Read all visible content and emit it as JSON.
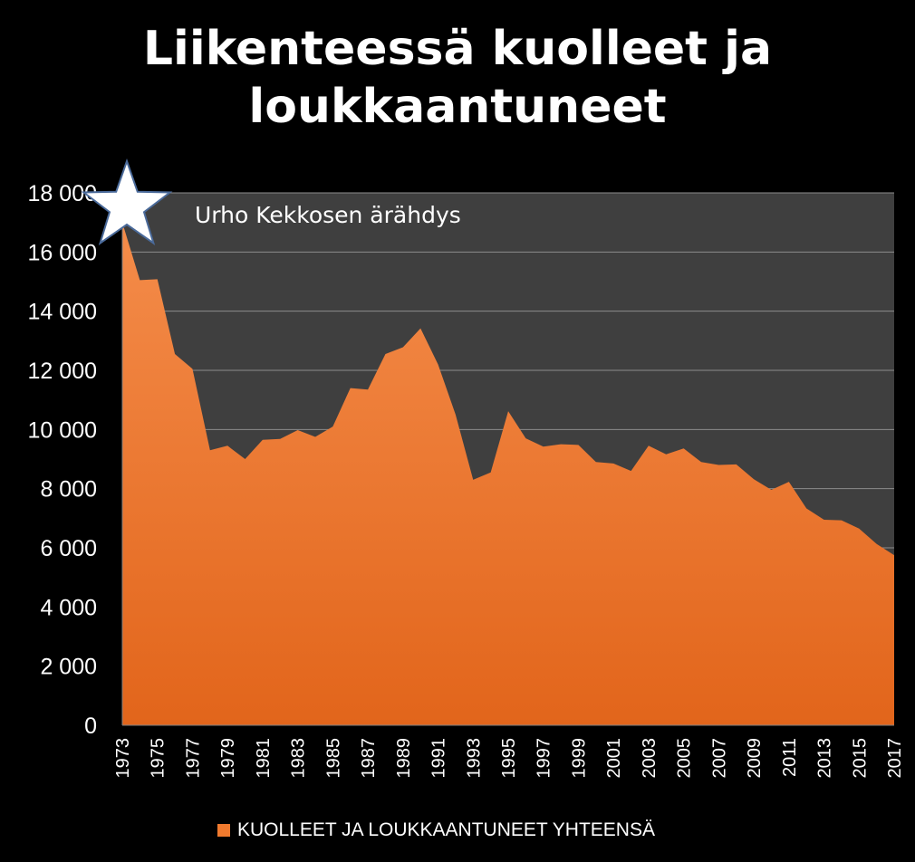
{
  "chart_data": {
    "type": "area",
    "title": "Liikenteessä kuolleet ja loukkaantuneet",
    "title_lines": [
      "Liikenteessä kuolleet ja",
      "loukkaantuneet"
    ],
    "xlabel": "",
    "ylabel": "",
    "ylim": [
      0,
      18000
    ],
    "y_ticks": [
      0,
      2000,
      4000,
      6000,
      8000,
      10000,
      12000,
      14000,
      16000,
      18000
    ],
    "y_tick_labels": [
      "0",
      "2 000",
      "4 000",
      "6 000",
      "8 000",
      "10 000",
      "12 000",
      "14 000",
      "16 000",
      "18 000"
    ],
    "x_tick_labels": [
      "1973",
      "1975",
      "1977",
      "1979",
      "1981",
      "1983",
      "1985",
      "1987",
      "1989",
      "1991",
      "1993",
      "1995",
      "1997",
      "1999",
      "2001",
      "2003",
      "2005",
      "2007",
      "2009",
      "2011",
      "2013",
      "2015",
      "2017"
    ],
    "grid": true,
    "legend_position": "bottom",
    "x": [
      1973,
      1974,
      1975,
      1976,
      1977,
      1978,
      1979,
      1980,
      1981,
      1982,
      1983,
      1984,
      1985,
      1986,
      1987,
      1988,
      1989,
      1990,
      1991,
      1992,
      1993,
      1994,
      1995,
      1996,
      1997,
      1998,
      1999,
      2000,
      2001,
      2002,
      2003,
      2004,
      2005,
      2006,
      2007,
      2008,
      2009,
      2010,
      2011,
      2012,
      2013,
      2014,
      2015,
      2016,
      2017
    ],
    "series": [
      {
        "name": "KUOLLEET JA LOUKKAANTUNEET YHTEENSÄ",
        "color": "#F07A2E",
        "values": [
          17000,
          15050,
          15080,
          12550,
          12050,
          9300,
          9450,
          9000,
          9650,
          9680,
          9980,
          9750,
          10100,
          11400,
          11350,
          12550,
          12780,
          13420,
          12200,
          10500,
          8300,
          8550,
          10620,
          9700,
          9420,
          9500,
          9480,
          8900,
          8850,
          8600,
          9450,
          9160,
          9360,
          8900,
          8800,
          8820,
          8320,
          7960,
          8230,
          7330,
          6950,
          6930,
          6650,
          6130,
          5750
        ]
      }
    ],
    "annotations": [
      {
        "text": "Urho Kekkosen ärähdys",
        "x": 1973,
        "y": 17000,
        "marker": "star-icon"
      }
    ],
    "colors": {
      "background": "#000000",
      "plot_background": "#3F3F3F",
      "gridline": "#8C8C8C",
      "area_top": "#F48C4A",
      "area_bottom": "#E2651B"
    }
  }
}
